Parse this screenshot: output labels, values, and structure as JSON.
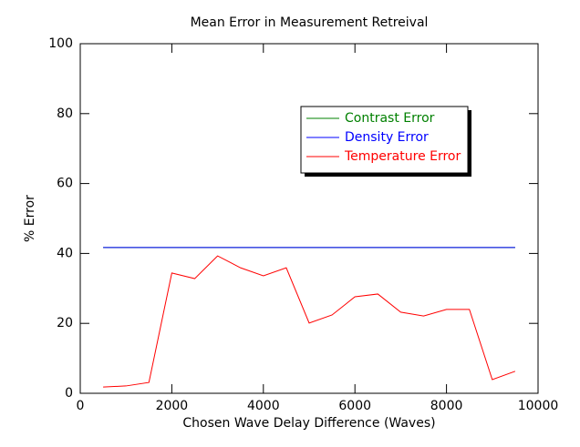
{
  "chart_data": {
    "type": "line",
    "title": "Mean Error in Measurement Retreival",
    "xlabel": "Chosen Wave Delay Difference (Waves)",
    "ylabel": "% Error",
    "x": [
      500,
      1000,
      1500,
      2000,
      2500,
      3000,
      3500,
      4000,
      4500,
      5000,
      5500,
      6000,
      6500,
      7000,
      7500,
      8000,
      8500,
      9000,
      9500
    ],
    "series": [
      {
        "name": "Contrast Error",
        "color": "#008000",
        "values": [
          41.7,
          41.7,
          41.7,
          41.7,
          41.7,
          41.7,
          41.7,
          41.7,
          41.7,
          41.7,
          41.7,
          41.7,
          41.7,
          41.7,
          41.7,
          41.7,
          41.7,
          41.7,
          41.7
        ]
      },
      {
        "name": "Density Error",
        "color": "#0000ff",
        "values": [
          41.7,
          41.7,
          41.7,
          41.7,
          41.7,
          41.7,
          41.7,
          41.7,
          41.7,
          41.7,
          41.7,
          41.7,
          41.7,
          41.7,
          41.7,
          41.7,
          41.7,
          41.7,
          41.7
        ]
      },
      {
        "name": "Temperature Error",
        "color": "#ff0000",
        "values": [
          1.8,
          2.1,
          3.1,
          34.4,
          32.8,
          39.3,
          35.9,
          33.6,
          35.9,
          20.1,
          22.4,
          27.6,
          28.4,
          23.2,
          22.1,
          24.0,
          24.0,
          3.9,
          6.3
        ]
      }
    ],
    "xlim": [
      0,
      10000
    ],
    "xticks": [
      0,
      2000,
      4000,
      6000,
      8000,
      10000
    ],
    "ylim": [
      0,
      100
    ],
    "yticks": [
      0,
      20,
      40,
      60,
      80,
      100
    ],
    "legend": "upper right"
  }
}
